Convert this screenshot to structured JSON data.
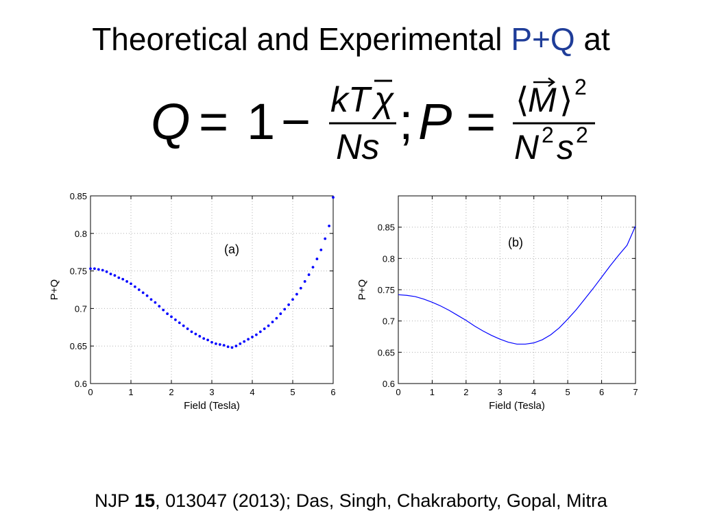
{
  "title": {
    "before": "Theoretical and Experimental ",
    "highlight": "P+Q",
    "after": " at",
    "highlight_color": "#1f3d99"
  },
  "formula": {
    "q_lhs": "Q",
    "equals": "=",
    "one": "1",
    "minus": "−",
    "q_num": "kT",
    "q_num_chi": "χ",
    "q_den": "Ns",
    "separator": ";",
    "p_lhs": "P",
    "p_num_open": "⟨",
    "p_num_m": "M",
    "p_num_close": "⟩",
    "p_num_exp": "2",
    "p_den": "N",
    "p_den_exp1": "2",
    "p_den_s": "s",
    "p_den_exp2": "2"
  },
  "citation": {
    "journal": "NJP ",
    "volume": "15",
    "rest": ", 013047 (2013); Das, Singh, Chakraborty, Gopal, Mitra"
  },
  "chart_data": [
    {
      "type": "scatter",
      "panel_label": "(a)",
      "xlabel": "Field (Tesla)",
      "ylabel": "P+Q",
      "xlim": [
        0,
        6
      ],
      "ylim": [
        0.6,
        0.85
      ],
      "xticks": [
        "0",
        "1",
        "2",
        "3",
        "4",
        "5",
        "6"
      ],
      "yticks": [
        "0.6",
        "0.65",
        "0.7",
        "0.75",
        "0.8",
        "0.85"
      ],
      "grid": true,
      "marker_color": "#0000ff",
      "series": [
        {
          "x": [
            0.0,
            0.1,
            0.2,
            0.3,
            0.4,
            0.5,
            0.6,
            0.7,
            0.8,
            0.9,
            1.0,
            1.1,
            1.2,
            1.3,
            1.4,
            1.5,
            1.6,
            1.7,
            1.8,
            1.9,
            2.0,
            2.1,
            2.2,
            2.3,
            2.4,
            2.5,
            2.6,
            2.7,
            2.8,
            2.9,
            3.0,
            3.1,
            3.2,
            3.3,
            3.4,
            3.5,
            3.6,
            3.7,
            3.8,
            3.9,
            4.0,
            4.1,
            4.2,
            4.3,
            4.4,
            4.5,
            4.6,
            4.7,
            4.8,
            4.9,
            5.0,
            5.1,
            5.2,
            5.3,
            5.4,
            5.5,
            5.6,
            5.7,
            5.8,
            5.9,
            6.0
          ],
          "y": [
            0.753,
            0.753,
            0.752,
            0.751,
            0.749,
            0.746,
            0.744,
            0.741,
            0.739,
            0.736,
            0.733,
            0.729,
            0.725,
            0.721,
            0.717,
            0.712,
            0.708,
            0.703,
            0.698,
            0.693,
            0.689,
            0.685,
            0.681,
            0.677,
            0.673,
            0.669,
            0.666,
            0.663,
            0.66,
            0.658,
            0.655,
            0.653,
            0.652,
            0.651,
            0.649,
            0.648,
            0.65,
            0.653,
            0.656,
            0.659,
            0.662,
            0.665,
            0.669,
            0.673,
            0.677,
            0.682,
            0.687,
            0.693,
            0.699,
            0.705,
            0.712,
            0.719,
            0.727,
            0.736,
            0.745,
            0.755,
            0.766,
            0.778,
            0.793,
            0.81,
            0.848
          ]
        }
      ]
    },
    {
      "type": "line",
      "panel_label": "(b)",
      "xlabel": "Field (Tesla)",
      "ylabel": "P+Q",
      "xlim": [
        0,
        7
      ],
      "ylim": [
        0.6,
        0.9
      ],
      "xticks": [
        "0",
        "1",
        "2",
        "3",
        "4",
        "5",
        "6",
        "7"
      ],
      "yticks": [
        "0.6",
        "0.65",
        "0.7",
        "0.75",
        "0.8",
        "0.85"
      ],
      "grid": true,
      "line_color": "#0000ff",
      "series": [
        {
          "x": [
            0.0,
            0.25,
            0.5,
            0.75,
            1.0,
            1.25,
            1.5,
            1.75,
            2.0,
            2.25,
            2.5,
            2.75,
            3.0,
            3.25,
            3.5,
            3.75,
            4.0,
            4.25,
            4.5,
            4.75,
            5.0,
            5.25,
            5.5,
            5.75,
            6.0,
            6.25,
            6.5,
            6.75,
            7.0
          ],
          "y": [
            0.742,
            0.741,
            0.739,
            0.735,
            0.73,
            0.724,
            0.717,
            0.709,
            0.701,
            0.692,
            0.684,
            0.677,
            0.671,
            0.666,
            0.663,
            0.663,
            0.665,
            0.67,
            0.678,
            0.689,
            0.703,
            0.718,
            0.735,
            0.752,
            0.77,
            0.788,
            0.805,
            0.821,
            0.852
          ]
        }
      ]
    }
  ]
}
